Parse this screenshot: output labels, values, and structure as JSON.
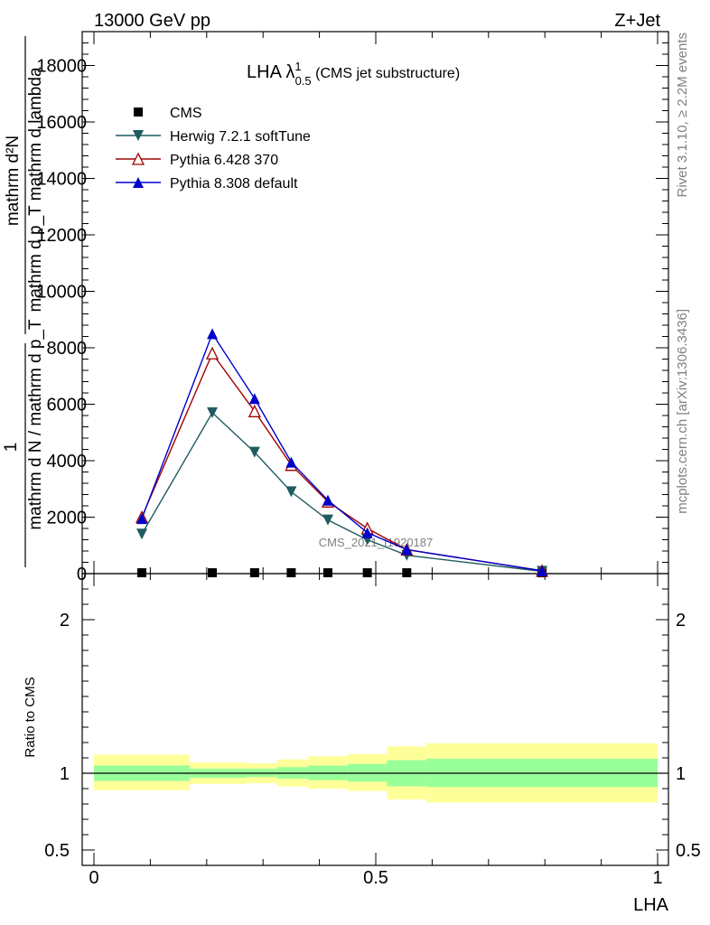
{
  "header": {
    "left": "13000 GeV pp",
    "right": "Z+Jet"
  },
  "side_text": {
    "rivet": "Rivet 3.1.10, ≥ 2.2M events",
    "mcplots": "mcplots.cern.ch [arXiv:1306.3436]"
  },
  "chart_data": {
    "type": "line",
    "title_main": "LHA λ",
    "title_sup": "1",
    "title_sub": "0.5",
    "title_rest": " (CMS jet substructure)",
    "watermark": "CMS_2021_I1920187",
    "ylabel_top_num": "mathrm d²N",
    "ylabel_top_den": "mathrm d p_T mathrm d lambda",
    "ylabel_num": "1",
    "ylabel_den": "mathrm d N / mathrm d p_T",
    "xlabel": "LHA",
    "ylabel_ratio": "Ratio to CMS",
    "xlim": [
      0,
      1
    ],
    "ylim": [
      0,
      19200
    ],
    "ratio_ylim": [
      0.4,
      2.3
    ],
    "yticks": [
      {
        "v": 0,
        "label": "0"
      },
      {
        "v": 2000,
        "label": "2000"
      },
      {
        "v": 4000,
        "label": "4000"
      },
      {
        "v": 6000,
        "label": "6000"
      },
      {
        "v": 8000,
        "label": "8000"
      },
      {
        "v": 10000,
        "label": "10000"
      },
      {
        "v": 12000,
        "label": "12000"
      },
      {
        "v": 14000,
        "label": "14000"
      },
      {
        "v": 16000,
        "label": "16000"
      },
      {
        "v": 18000,
        "label": "18000"
      }
    ],
    "xticks": [
      {
        "v": 0,
        "label": "0"
      },
      {
        "v": 0.5,
        "label": "0.5"
      },
      {
        "v": 1,
        "label": "1"
      }
    ],
    "ratio_ticks": [
      {
        "v": 0.5,
        "label": "0.5"
      },
      {
        "v": 1,
        "label": "1"
      },
      {
        "v": 2,
        "label": "2"
      }
    ],
    "x": [
      0.085,
      0.21,
      0.285,
      0.35,
      0.415,
      0.485,
      0.555,
      0.795
    ],
    "series": [
      {
        "name": "CMS",
        "color": "#000000",
        "marker": "square",
        "values": [
          30,
          30,
          30,
          30,
          30,
          30,
          30,
          30
        ]
      },
      {
        "name": "Herwig 7.2.1 softTune",
        "color": "#1f5b5f",
        "marker": "triangle-down",
        "values": [
          1400,
          5700,
          4300,
          2900,
          1900,
          1200,
          650,
          80
        ]
      },
      {
        "name": "Pythia 6.428 370",
        "color": "#a00000",
        "marker": "triangle-open",
        "values": [
          2000,
          7800,
          5750,
          3850,
          2550,
          1600,
          850,
          100
        ]
      },
      {
        "name": "Pythia 8.308 default",
        "color": "#0000cc",
        "marker": "triangle-up",
        "values": [
          1950,
          8500,
          6200,
          3950,
          2600,
          1450,
          850,
          100
        ]
      }
    ],
    "ratio_bands": [
      {
        "x0": 0.0,
        "x1": 0.17,
        "in_lo": 0.95,
        "in_hi": 1.05,
        "out_lo": 0.89,
        "out_hi": 1.12
      },
      {
        "x0": 0.17,
        "x1": 0.27,
        "in_lo": 0.97,
        "in_hi": 1.03,
        "out_lo": 0.93,
        "out_hi": 1.07
      },
      {
        "x0": 0.27,
        "x1": 0.325,
        "in_lo": 0.975,
        "in_hi": 1.03,
        "out_lo": 0.935,
        "out_hi": 1.065
      },
      {
        "x0": 0.325,
        "x1": 0.38,
        "in_lo": 0.965,
        "in_hi": 1.04,
        "out_lo": 0.915,
        "out_hi": 1.09
      },
      {
        "x0": 0.38,
        "x1": 0.45,
        "in_lo": 0.955,
        "in_hi": 1.05,
        "out_lo": 0.9,
        "out_hi": 1.11
      },
      {
        "x0": 0.45,
        "x1": 0.52,
        "in_lo": 0.945,
        "in_hi": 1.06,
        "out_lo": 0.885,
        "out_hi": 1.125
      },
      {
        "x0": 0.52,
        "x1": 0.59,
        "in_lo": 0.915,
        "in_hi": 1.085,
        "out_lo": 0.83,
        "out_hi": 1.175
      },
      {
        "x0": 0.59,
        "x1": 1.0,
        "in_lo": 0.91,
        "in_hi": 1.095,
        "out_lo": 0.81,
        "out_hi": 1.195
      }
    ],
    "band_colors": {
      "inner": "#99ff99",
      "outer": "#ffff99"
    }
  }
}
